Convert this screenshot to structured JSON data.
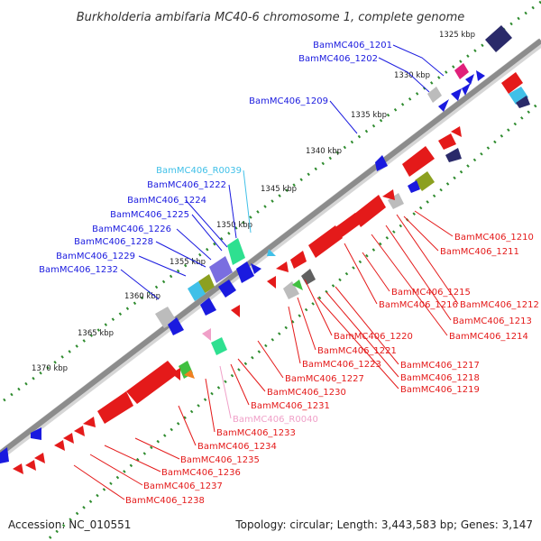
{
  "title": "Burkholderia ambifaria MC40-6 chromosome 1, complete genome",
  "footer": {
    "accession": "Accession: NC_010551",
    "summary": "Topology: circular; Length: 3,443,583 bp; Genes: 3,147"
  },
  "colors": {
    "forward_gene": "#1a1adf",
    "reverse_gene": "#e41a1a",
    "trna_forward": "#40c0e8",
    "trna_reverse": "#f0a0c8",
    "backbone": "#8c8c8c",
    "tick_dots": "#2e8b2e"
  },
  "kbp_marks": [
    "1325 kbp",
    "1330 kbp",
    "1335 kbp",
    "1340 kbp",
    "1345 kbp",
    "1350 kbp",
    "1355 kbp",
    "1360 kbp",
    "1365 kbp",
    "1370 kbp"
  ],
  "forward_labels": [
    "BamMC406_1201",
    "BamMC406_1202",
    "BamMC406_1209",
    "BamMC406_R0039",
    "BamMC406_1222",
    "BamMC406_1224",
    "BamMC406_1225",
    "BamMC406_1226",
    "BamMC406_1228",
    "BamMC406_1229",
    "BamMC406_1232"
  ],
  "reverse_labels_right": [
    "BamMC406_1210",
    "BamMC406_1211",
    "BamMC406_1215",
    "BamMC406_1216",
    "BamMC406_1212",
    "BamMC406_1213",
    "BamMC406_1214",
    "BamMC406_1220",
    "BamMC406_1221",
    "BamMC406_1223",
    "BamMC406_1217",
    "BamMC406_1218",
    "BamMC406_1219",
    "BamMC406_1227",
    "BamMC406_1230",
    "BamMC406_1231",
    "BamMC406_R0040",
    "BamMC406_1233",
    "BamMC406_1234",
    "BamMC406_1235",
    "BamMC406_1236",
    "BamMC406_1237",
    "BamMC406_1238"
  ]
}
